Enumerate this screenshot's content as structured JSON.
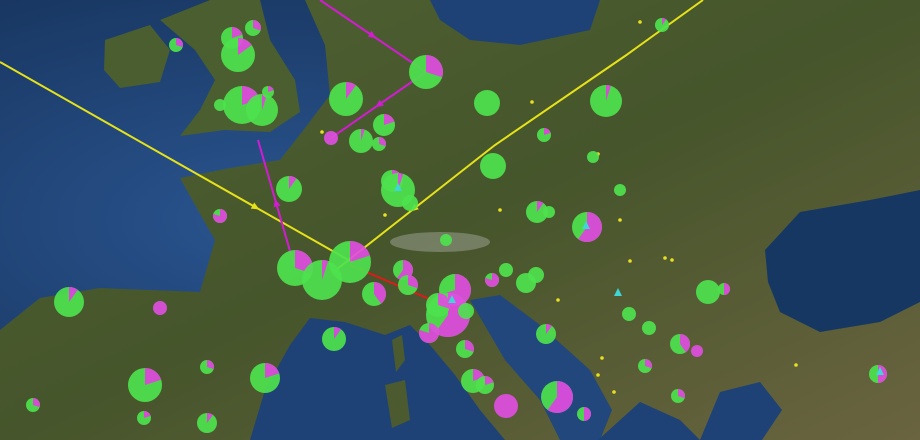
{
  "map": {
    "basemap": "satellite",
    "colors": {
      "sea": "#1d3d70",
      "land": "#4b5a2f",
      "pie_primary": "#4ee24e",
      "pie_secondary": "#e04ee0",
      "route_yellow": "#e6e21a",
      "route_magenta": "#d21cd2",
      "route_red": "#e01a1a",
      "point_yellow": "#e8e020",
      "triangle_cyan": "#3fd6d6"
    },
    "pie_markers_secondary_share": [
      0.3,
      0.2,
      0.3,
      0.15,
      0.2,
      0.05,
      0.2,
      0,
      0.3,
      0.1,
      1.0,
      0.05,
      0.2,
      0.3,
      0,
      0.05,
      0.2,
      0,
      0,
      0.1,
      0.8,
      0.1,
      0.05,
      0,
      0.1,
      0,
      0,
      0.6,
      0,
      0.3,
      0.05,
      0.2,
      0.4,
      0.6,
      0.3,
      0.7,
      0.6,
      0.3,
      0.8,
      0,
      0,
      0,
      0,
      0.8,
      0.1,
      1.0,
      0,
      0.5,
      0,
      0,
      0.1,
      0.1,
      0.3,
      0.4,
      1.0,
      0.3,
      0.2,
      0.3,
      0.2,
      0.2,
      0.2,
      1.0,
      0.6,
      0.5,
      0.2,
      0.1,
      0.3,
      0.3,
      0.5,
      0.1
    ]
  }
}
